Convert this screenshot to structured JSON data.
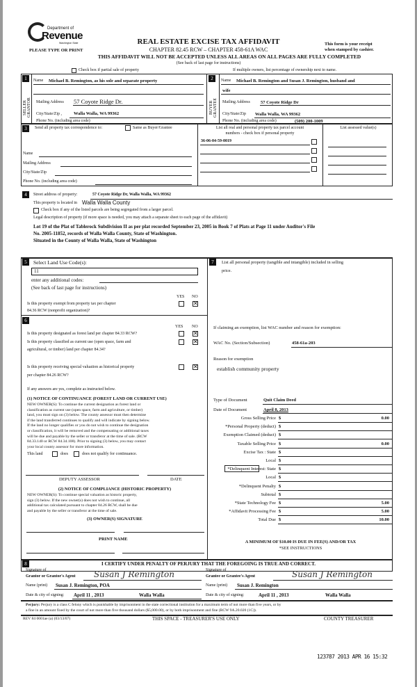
{
  "header": {
    "logo_dept": "Department of",
    "logo_name": "Revenue",
    "logo_state": "Washington State",
    "please_type": "PLEASE TYPE OR PRINT",
    "title": "REAL ESTATE EXCISE TAX AFFIDAVIT",
    "chapter": "CHAPTER 82.45 RCW – CHAPTER 458-61A WAC",
    "warning": "THIS AFFIDAVIT WILL NOT BE ACCEPTED UNLESS ALL AREAS ON ALL PAGES ARE FULLY COMPLETED",
    "receipt_1": "This form is your receipt",
    "receipt_2": "when stamped by cashier.",
    "see_back": "(See back of last page for instructions)",
    "partial_sale": "Check box if partial sale of property",
    "multiple_owners": "If multiple owners, list percentage of ownership next to name."
  },
  "seller": {
    "num": "1",
    "side_label": "SELLER GRANTOR",
    "name_label": "Name",
    "name": "Michael B. Remington, as his sole and separate property",
    "address_label": "Mailing Address",
    "address": "57 Coyote Ridge Dr.",
    "city_label": "City/State/Zip ,",
    "city": "Walla Walla, WA 99362",
    "phone_label": "Phone No. (including area code)",
    "phone": ""
  },
  "buyer": {
    "num": "2",
    "side_label": "BUYER GRANTEE",
    "name_label": "Name",
    "name": "Michael B. Remington and Susan J. Remington, husband and",
    "name_2": "wife",
    "address_label": "Mailing Address",
    "address": "57 Coyote Ridge Dr",
    "city_label": "City/State/Zip",
    "city": "Walla Walla, WA  99362",
    "phone_label": "Phone No. (including area code)",
    "phone": "(509) 200-1009"
  },
  "section3": {
    "num": "3",
    "label": "Send all property tax correspondence to:",
    "same_as": "Same as Buyer/Grantee",
    "name_label": "Name",
    "address_label": "Mailing Address",
    "city_label": "City/State/Zip",
    "phone_label": "Phone No. (including area code)",
    "parcels_header_1": "List all real and personal property tax parcel account",
    "parcels_header_2": "numbers - check box if personal property",
    "parcels": [
      "36-06-04-59-0019",
      "",
      "",
      ""
    ],
    "assessed_header": "List assessed value(s)"
  },
  "section4": {
    "num": "4",
    "street_label": "Street address of property:",
    "street": "57 Coyote Ridge Dr, Walla Walla, WA  99362",
    "located_label": "This property is located in",
    "county": "Walla Walla County",
    "segregated": "Check box if any of the listed parcels are being segregated from a larger parcel.",
    "legal_label": "Legal description of property (if more space is needed, you may attach a separate sheet to each page of the affidavit)",
    "legal_1": "Lot 19 of the Plat of Tablerock Subdivision II as per plat recorded September 23, 2005 in Book 7 of Plats at Page 11 under Auditor's File",
    "legal_2": "No. 2005-11852, records of Walla Walla County, State of Washington.",
    "legal_3": "Situated in the County of Walla Walla, State of Washington"
  },
  "section5": {
    "num": "5",
    "label": "Select Land Use Code(s):",
    "code": "11",
    "additional": "enter any additional codes:",
    "see_back": "(See back of last page for instructions)",
    "yes": "YES",
    "no": "NO",
    "exempt_q1": "Is this property exempt from property tax per chapter",
    "exempt_q2": "84.36 RCW (nonprofit organization)?",
    "exempt_answer": "NO"
  },
  "section6": {
    "num": "6",
    "yes": "YES",
    "no": "NO",
    "q_forest": "Is this property designated as forest land per chapter 84.33 RCW?",
    "forest_answer": "NO",
    "q_current_1": "Is this property classified as current use (open space, farm and",
    "q_current_2": "agricultural, or timber) land per chapter 84.34?",
    "current_answer": "NO",
    "q_hist_1": "Is this property receiving special valuation as historical property",
    "q_hist_2": "per chapter 84.26 RCW?",
    "hist_answer": "NO",
    "if_yes": "If any answers are yes, complete as instructed below.",
    "notice1_title": "(1) NOTICE OF CONTINUANCE (FOREST LAND OR CURRENT USE)",
    "notice1_lines": [
      "NEW OWNER(S): To continue the current designation as forest land or",
      "classification as current use (open space, farm and agriculture, or timber)",
      "land, you must sign on (3) below. The county assessor must then determine",
      "if the land transferred continues to qualify and will indicate by signing below.",
      "If the land no longer qualifies or you do not wish to continue the designation",
      "or classification, it will be removed and the compensating or additional taxes",
      "will be due and payable by the seller or transferor at the time of sale. (RCW",
      "84.33.140 or RCW 84.34.108). Prior to signing (3) below, you may contact",
      "your local county assessor for more information."
    ],
    "this_land": "This land",
    "does": "does",
    "does_not": "does not  qualify for continuance.",
    "deputy": "DEPUTY ASSESSOR",
    "date": "DATE",
    "notice2_title": "(2) NOTICE OF COMPLIANCE (HISTORIC PROPERTY)",
    "notice2_lines": [
      "NEW OWNER(S): To continue special valuation as historic property,",
      "sign (3) below. If the new owner(s) does not wish to continue, all",
      "additional tax calculated pursuant to chapter 84.26 RCW, shall be due",
      "and payable by the seller or transferor at the time of sale."
    ],
    "owner_sig": "(3) OWNER(S) SIGNATURE",
    "print_name": "PRINT NAME"
  },
  "section7": {
    "num": "7",
    "label_1": "List all personal property (tangible and intangible) included in selling",
    "label_2": "price.",
    "exemption_label": "If claiming an exemption, list WAC number and reason for exemption:",
    "wac_label": "WAC No. (Section/Subsection)",
    "wac": "458-61a-203",
    "reason_label": "Reason for exemption",
    "reason": "establish community property",
    "doc_type_label": "Type of Document",
    "doc_type": "Quit Claim Deed",
    "doc_date_label": "Date of Document",
    "doc_date": "April 8, 2013",
    "amounts": [
      {
        "label": "Gross Selling Price",
        "value": "0.00"
      },
      {
        "label": "*Personal Property (deduct)",
        "value": ""
      },
      {
        "label": "Exemption Claimed (deduct)",
        "value": ""
      },
      {
        "label": "Taxable Selling Price",
        "value": "0.00"
      },
      {
        "label": "Excise Tax : State",
        "value": ""
      },
      {
        "label": "Local",
        "value": ""
      },
      {
        "label": "*Delinquent Interest:  State",
        "value": ""
      },
      {
        "label": "Local",
        "value": ""
      },
      {
        "label": "*Delinquent Penalty",
        "value": ""
      },
      {
        "label": "Subtotal",
        "value": ""
      },
      {
        "label": "*State Technology Fee",
        "value": "5.00"
      },
      {
        "label": "*Affidavit Processing Fee",
        "value": "5.00"
      },
      {
        "label": "Total Due",
        "value": "10.00"
      }
    ],
    "currency": "$",
    "minimum": "A MINIMUM OF $10.00 IS DUE IN FEE(S) AND/OR TAX",
    "see_instructions": "*SEE INSTRUCTIONS"
  },
  "section8": {
    "num": "8",
    "certify": "I CERTIFY UNDER PENALTY OF PERJURY THAT THE FOREGOING IS TRUE AND CORRECT.",
    "grantor_sig_1": "Signature of",
    "grantor_sig_2": "Grantor or Grantor's Agent",
    "grantor_signature": "Susan J Remington",
    "grantor_name_label": "Name (print)",
    "grantor_name": "Susan J. Remington, POA",
    "grantor_date_label": "Date & city of signing:",
    "grantor_date": "April  11    , 2013",
    "grantor_city": "Walla Walla",
    "grantee_sig_1": "Signature of",
    "grantee_sig_2": "Grantee or Grantee's Agent",
    "grantee_signature": "Susan J Remington",
    "grantee_name_label": "Name (print)",
    "grantee_name": "Susan J. Remington",
    "grantee_date_label": "Date & city of signing:",
    "grantee_date": "April  11    , 2013",
    "grantee_city": "Walla Walla",
    "perjury_label": "Perjury:",
    "perjury_1": "Perjury is a class C felony which is punishable by imprisonment in the state correctional institution for a maximum term of not more than five years, or by",
    "perjury_2": "a fine in an amount fixed by the court of not more than five thousand dollars ($5,000.00), or by both imprisonment and fine (RCW 9A.20.020 (1C))."
  },
  "footer": {
    "rev": "REV 84 0001ae (a) (03/13/07)",
    "treasurer_use": "THIS SPACE - TREASURER'S USE ONLY",
    "county_treasurer": "COUNTY TREASURER",
    "stamp": "123787 2013 APR 16 15:32"
  }
}
